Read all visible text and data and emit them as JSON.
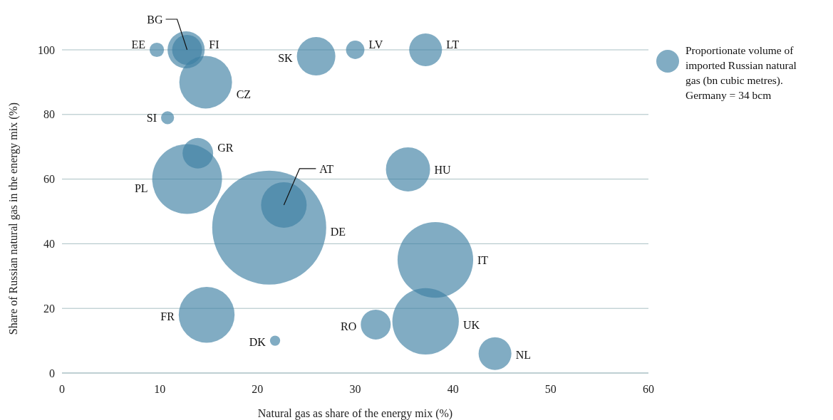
{
  "chart_data": {
    "type": "bubble",
    "xlabel": "Natural gas as share of the energy mix (%)",
    "ylabel": "Share of Russian natural gas in the energy mix (%)",
    "xlim": [
      0,
      60
    ],
    "xticks": [
      0,
      10,
      20,
      30,
      40,
      50,
      60
    ],
    "ylim": [
      0,
      100
    ],
    "yticks": [
      0,
      20,
      40,
      60,
      80,
      100
    ],
    "grid": "y",
    "legend": "right",
    "series": [
      {
        "name": "Proportionate volume of imported Russian natural gas (bn cubic metres). Germany = 34 bcm",
        "color": "#3d7fa3",
        "x": [
          9.7,
          12.8,
          12.7,
          26.0,
          30.0,
          37.2,
          14.7,
          10.8,
          13.9,
          12.8,
          22.7,
          21.2,
          35.4,
          38.2,
          14.8,
          21.8,
          32.1,
          37.2,
          44.3
        ],
        "values": [
          100,
          100,
          100,
          98,
          100,
          100,
          90,
          79,
          68,
          60,
          52,
          45,
          63,
          35,
          18,
          10,
          15,
          16,
          6
        ],
        "sizes": [
          0.016,
          0.069,
          0.106,
          0.114,
          0.026,
          0.083,
          0.214,
          0.013,
          0.072,
          0.375,
          0.16,
          1,
          0.15,
          0.44,
          0.24,
          0.008,
          0.069,
          0.34,
          0.083
        ]
      }
    ],
    "annotations": [
      {
        "text": "EE",
        "x": 9.7,
        "y": 100
      },
      {
        "text": "BG",
        "x": 12.8,
        "y": 100
      },
      {
        "text": "FI",
        "x": 12.7,
        "y": 100
      },
      {
        "text": "SK",
        "x": 26.0,
        "y": 98
      },
      {
        "text": "LV",
        "x": 30.0,
        "y": 100
      },
      {
        "text": "LT",
        "x": 37.2,
        "y": 100
      },
      {
        "text": "CZ",
        "x": 14.7,
        "y": 90
      },
      {
        "text": "SI",
        "x": 10.8,
        "y": 79
      },
      {
        "text": "GR",
        "x": 13.9,
        "y": 68
      },
      "PL",
      {
        "text": "AT",
        "x": 22.7,
        "y": 52
      },
      "DE",
      {
        "text": "HU",
        "x": 35.4,
        "y": 63
      },
      "IT",
      {
        "text": "FR",
        "x": 14.8,
        "y": 18
      },
      {
        "text": "DK",
        "x": 21.8,
        "y": 10
      },
      {
        "text": "RO",
        "x": 32.1,
        "y": 15
      },
      "UK",
      {
        "text": "NL",
        "x": 44.3,
        "y": 6
      }
    ]
  }
}
